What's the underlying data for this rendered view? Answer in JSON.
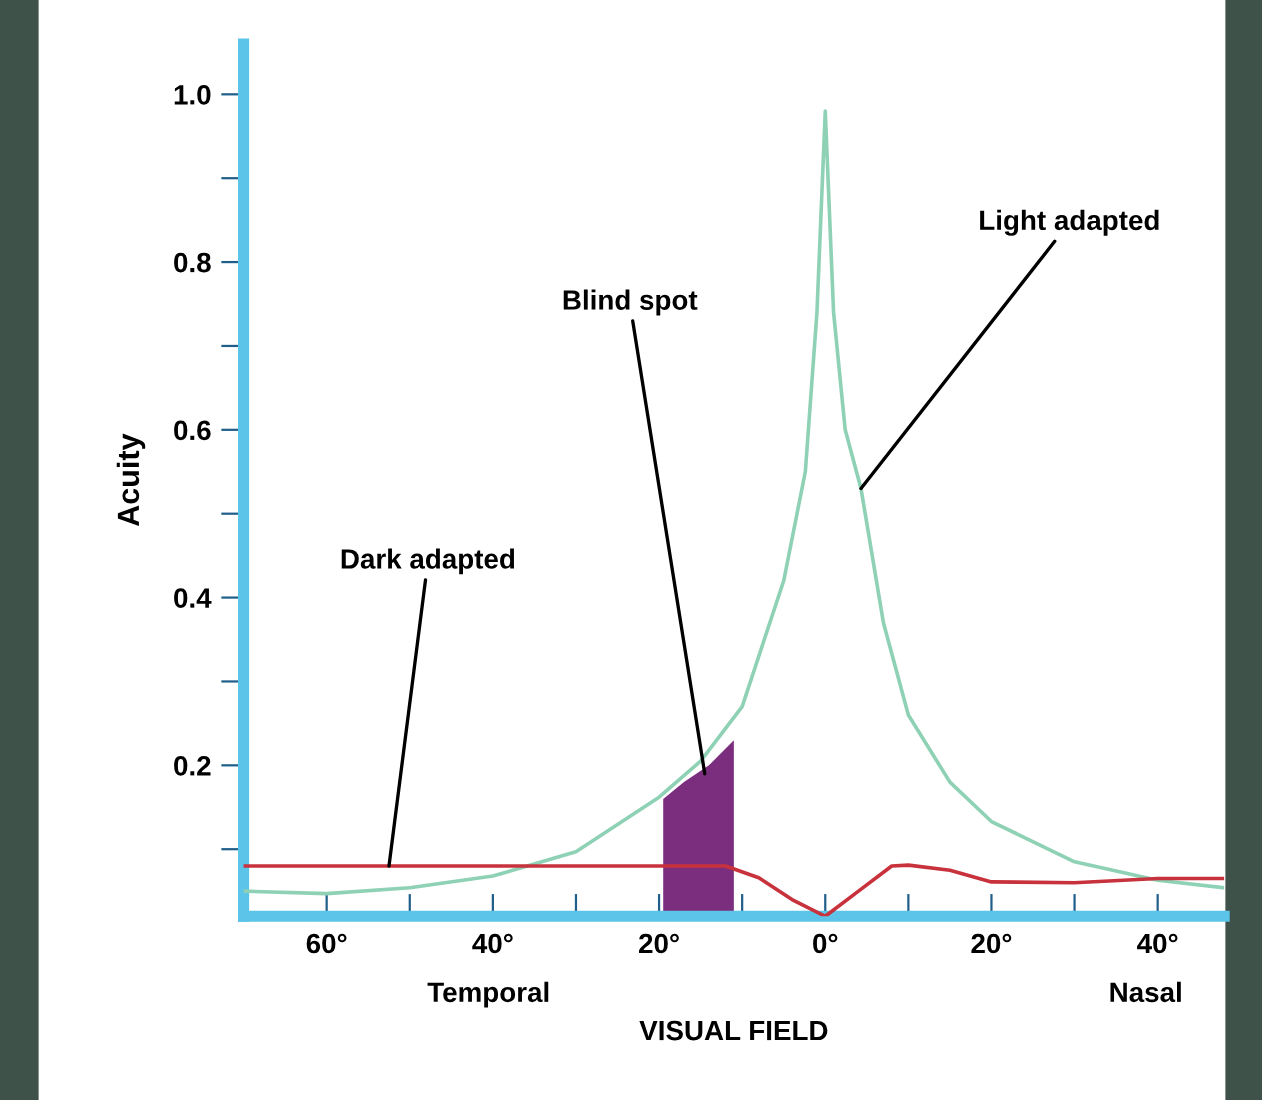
{
  "chart_data": {
    "type": "line",
    "xlabel": "VISUAL FIELD",
    "ylabel": "Acuity",
    "xlim": [
      -70,
      48
    ],
    "ylim": [
      0.02,
      1.06
    ],
    "xticks": [
      {
        "value": -60,
        "label": "60°"
      },
      {
        "value": -50,
        "label": null
      },
      {
        "value": -40,
        "label": "40°"
      },
      {
        "value": -30,
        "label": null
      },
      {
        "value": -20,
        "label": "20°"
      },
      {
        "value": -10,
        "label": null
      },
      {
        "value": 0,
        "label": "0°"
      },
      {
        "value": 10,
        "label": null
      },
      {
        "value": 20,
        "label": "20°"
      },
      {
        "value": 30,
        "label": null
      },
      {
        "value": 40,
        "label": "40°"
      }
    ],
    "yticks": [
      {
        "value": 0.1,
        "label": null
      },
      {
        "value": 0.2,
        "label": "0.2"
      },
      {
        "value": 0.3,
        "label": null
      },
      {
        "value": 0.4,
        "label": "0.4"
      },
      {
        "value": 0.5,
        "label": null
      },
      {
        "value": 0.6,
        "label": "0.6"
      },
      {
        "value": 0.7,
        "label": null
      },
      {
        "value": 0.8,
        "label": "0.8"
      },
      {
        "value": 0.9,
        "label": null
      },
      {
        "value": 1.0,
        "label": "1.0"
      }
    ],
    "grid": false,
    "legend": false,
    "marker": "none",
    "line_style": "solid",
    "series": [
      {
        "type": "area",
        "color": "#7b2d7e",
        "x": [
          -19.5,
          -17,
          -14,
          -11
        ],
        "values": [
          0.16,
          0.18,
          0.2,
          0.23
        ]
      },
      {
        "color": "#8ed1b5",
        "x": [
          -70,
          -60,
          -50,
          -40,
          -30,
          -20,
          -15,
          -10,
          -5,
          -2.4,
          -1,
          0,
          1,
          2.4,
          4.3,
          7,
          10,
          15,
          20,
          30,
          40,
          48
        ],
        "values": [
          0.05,
          0.047,
          0.054,
          0.068,
          0.097,
          0.162,
          0.205,
          0.27,
          0.42,
          0.55,
          0.74,
          0.98,
          0.74,
          0.6,
          0.53,
          0.37,
          0.26,
          0.18,
          0.133,
          0.085,
          0.063,
          0.054
        ]
      },
      {
        "color": "#c8323c",
        "x": [
          -70,
          -50,
          -30,
          -20,
          -12,
          -8,
          -4,
          0,
          4,
          8,
          10,
          15,
          20,
          30,
          40,
          48
        ],
        "values": [
          0.08,
          0.08,
          0.08,
          0.08,
          0.08,
          0.066,
          0.04,
          0.02,
          0.05,
          0.08,
          0.081,
          0.075,
          0.061,
          0.06,
          0.065,
          0.065
        ]
      }
    ],
    "annotations": [
      {
        "text": "Light adapted",
        "x": 4.3,
        "y": 0.53
      },
      {
        "text": "Blind spot",
        "x": -14.5,
        "y": 0.19
      },
      {
        "text": "Dark adapted",
        "x": -52.5,
        "y": 0.08
      },
      "Temporal",
      "Nasal"
    ]
  }
}
